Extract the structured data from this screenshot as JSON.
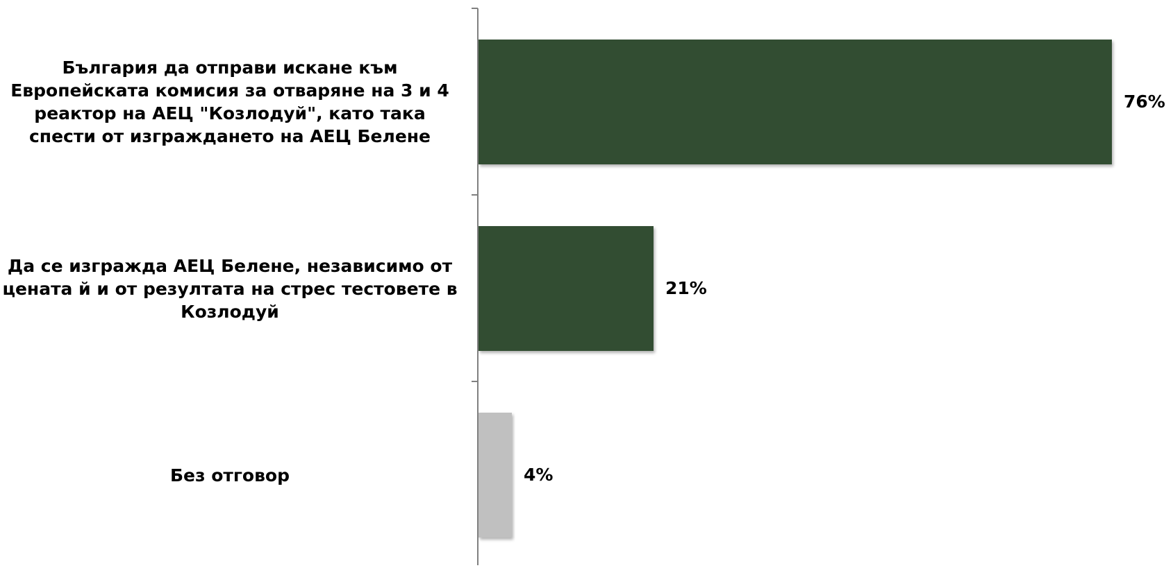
{
  "chart_data": {
    "type": "bar",
    "orientation": "horizontal",
    "categories": [
      "България да отправи искане към Европейската комисия за отваряне на 3 и 4 реактор на АЕЦ \"Козлодуй\", като така спести от изграждането на АЕЦ Белене",
      "Да се изгражда АЕЦ Белене, независимо от цената й и от резултата на стрес тестовете в Козлодуй",
      "Без отговор"
    ],
    "values": [
      76,
      21,
      4
    ],
    "value_labels": [
      "76%",
      "21%",
      "4%"
    ],
    "bar_colors": [
      "#334d33",
      "#334d33",
      "#c0c0c0"
    ],
    "xlim": [
      0,
      100
    ],
    "grid": false,
    "legend": "none",
    "title": "",
    "xlabel": "",
    "ylabel": ""
  }
}
